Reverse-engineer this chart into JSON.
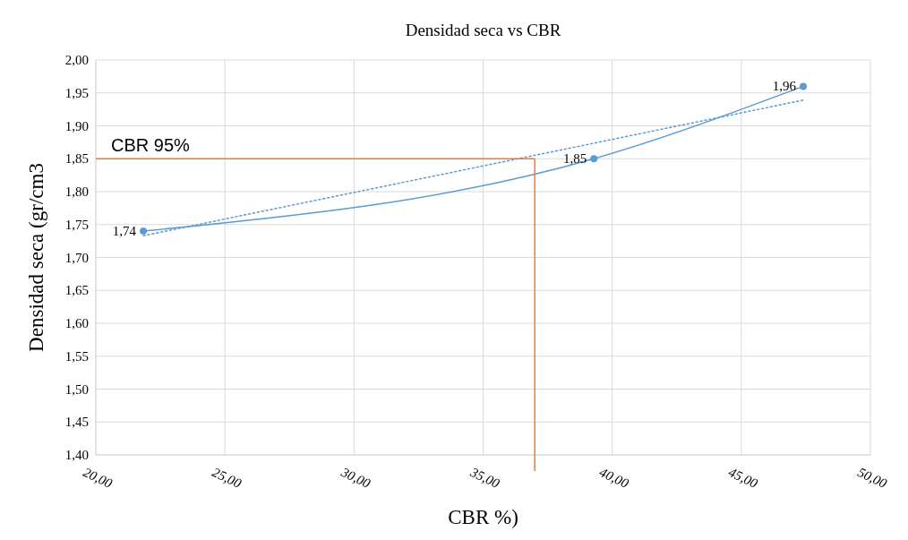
{
  "chart_data": {
    "type": "line",
    "title": "Densidad seca vs CBR",
    "xlabel": "CBR %)",
    "ylabel": "Densidad seca  (gr/cm3",
    "xlim": [
      20,
      50
    ],
    "ylim": [
      1.4,
      2.0
    ],
    "xticks": [
      {
        "value": 20,
        "label": "20,00"
      },
      {
        "value": 25,
        "label": "25,00"
      },
      {
        "value": 30,
        "label": "30,00"
      },
      {
        "value": 35,
        "label": "35,00"
      },
      {
        "value": 40,
        "label": "40,00"
      },
      {
        "value": 45,
        "label": "45,00"
      },
      {
        "value": 50,
        "label": "50,00"
      }
    ],
    "yticks": [
      {
        "value": 1.4,
        "label": "1,40"
      },
      {
        "value": 1.45,
        "label": "1,45"
      },
      {
        "value": 1.5,
        "label": "1,50"
      },
      {
        "value": 1.55,
        "label": "1,55"
      },
      {
        "value": 1.6,
        "label": "1,60"
      },
      {
        "value": 1.65,
        "label": "1,65"
      },
      {
        "value": 1.7,
        "label": "1,70"
      },
      {
        "value": 1.75,
        "label": "1,75"
      },
      {
        "value": 1.8,
        "label": "1,80"
      },
      {
        "value": 1.85,
        "label": "1,85"
      },
      {
        "value": 1.9,
        "label": "1,90"
      },
      {
        "value": 1.95,
        "label": "1,95"
      },
      {
        "value": 2.0,
        "label": "2,00"
      }
    ],
    "grid": true,
    "series": [
      {
        "color": "#5b9bd5",
        "x": [
          21.84,
          39.29,
          47.4
        ],
        "values": [
          1.74,
          1.85,
          1.96
        ],
        "marker": "circle",
        "line_style": "solid",
        "value_labels": [
          "1,74",
          "1,85",
          "1,96"
        ]
      },
      {
        "color": "#5b9bd5",
        "x": [
          21.84,
          47.4
        ],
        "values": [
          1.733,
          1.939
        ],
        "marker": "none",
        "line_style": "dotted"
      }
    ],
    "ref_lines": [
      {
        "axis": "y",
        "value": 1.85,
        "label": "CBR 95%",
        "color": "#ed7d31"
      },
      {
        "axis": "x",
        "value": 37.0,
        "label": null,
        "color": "#ed7d31"
      }
    ]
  }
}
